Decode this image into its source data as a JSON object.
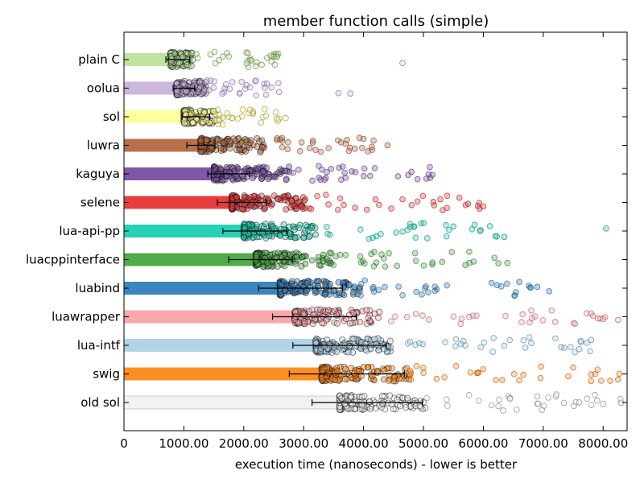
{
  "chart_data": {
    "type": "bar",
    "orientation": "horizontal",
    "title": "member function calls (simple)",
    "xlabel": "execution time (nanoseconds) - lower is better",
    "ylabel": "",
    "xlim": [
      0,
      8400
    ],
    "xticks": [
      0,
      1000,
      2000,
      3000,
      4000,
      5000,
      6000,
      7000,
      8000
    ],
    "xtick_labels": [
      "0",
      "1000.00",
      "2000.00",
      "3000.00",
      "4000.00",
      "5000.00",
      "6000.00",
      "7000.00",
      "8000.00"
    ],
    "grid": false,
    "categories": [
      "plain C",
      "oolua",
      "sol",
      "luwra",
      "kaguya",
      "selene",
      "lua-api-pp",
      "luacppinterface",
      "luabind",
      "luawrapper",
      "lua-intf",
      "swig",
      "old sol"
    ],
    "values": [
      900,
      1000,
      1200,
      1300,
      1500,
      1800,
      2000,
      2200,
      2600,
      2900,
      3200,
      3600,
      3600
    ],
    "error_low": [
      700,
      820,
      970,
      1050,
      1400,
      1560,
      1650,
      1750,
      2250,
      2480,
      2820,
      2760,
      3140
    ],
    "error_high": [
      1100,
      1180,
      1430,
      1520,
      2100,
      2380,
      2720,
      2810,
      3650,
      3880,
      4380,
      4680,
      4980
    ],
    "points": [
      {
        "min": 780,
        "dense_max": 1150,
        "max": 2600,
        "outliers": [
          4650,
          2300,
          2450,
          2550
        ]
      },
      {
        "min": 880,
        "dense_max": 1350,
        "max": 2600,
        "outliers": [
          3580,
          3780
        ]
      },
      {
        "min": 1000,
        "dense_max": 1500,
        "max": 2600,
        "outliers": [
          2550,
          2700
        ]
      },
      {
        "min": 1280,
        "dense_max": 2300,
        "max": 4200,
        "outliers": [
          3700,
          4000,
          4400
        ]
      },
      {
        "min": 1500,
        "dense_max": 2700,
        "max": 5200,
        "outliers": [
          4800,
          4900,
          5050,
          5150
        ]
      },
      {
        "min": 1800,
        "dense_max": 3000,
        "max": 6000,
        "outliers": [
          4200,
          4900,
          5600,
          6000
        ]
      },
      {
        "min": 2000,
        "dense_max": 3200,
        "max": 6400,
        "outliers": [
          5500,
          6200,
          6350,
          8050
        ]
      },
      {
        "min": 2200,
        "dense_max": 3400,
        "max": 6400,
        "outliers": [
          4300,
          5150,
          5700,
          6400
        ]
      },
      {
        "min": 2600,
        "dense_max": 3900,
        "max": 7100,
        "outliers": [
          6300,
          6600,
          6900,
          7100
        ]
      },
      {
        "min": 2850,
        "dense_max": 4200,
        "max": 8300,
        "outliers": [
          7200,
          7800,
          8000,
          8250
        ]
      },
      {
        "min": 3200,
        "dense_max": 4400,
        "max": 7900,
        "outliers": [
          6800,
          7300,
          7600,
          7800
        ]
      },
      {
        "min": 3300,
        "dense_max": 4700,
        "max": 8300,
        "outliers": [
          6600,
          7500,
          7800,
          8250
        ]
      },
      {
        "min": 3600,
        "dense_max": 5000,
        "max": 8350,
        "outliers": [
          7600,
          7900,
          8000,
          8300
        ]
      }
    ],
    "colors": [
      "#bfe3a0",
      "#cbb6dc",
      "#fffea0",
      "#b7704a",
      "#8056a8",
      "#e83d3d",
      "#27d1b4",
      "#4fac4a",
      "#3d86bd",
      "#faa8ac",
      "#b1d4e8",
      "#fd8e25",
      "#f2f2f2"
    ],
    "point_colors": [
      "#5a7d3c",
      "#7a5d92",
      "#8b8a30",
      "#7a3b1f",
      "#4d2a75",
      "#9b1d1d",
      "#0f7f6d",
      "#2b6b2a",
      "#1f5784",
      "#a35a60",
      "#4a7a96",
      "#a85a10",
      "#777777"
    ]
  }
}
